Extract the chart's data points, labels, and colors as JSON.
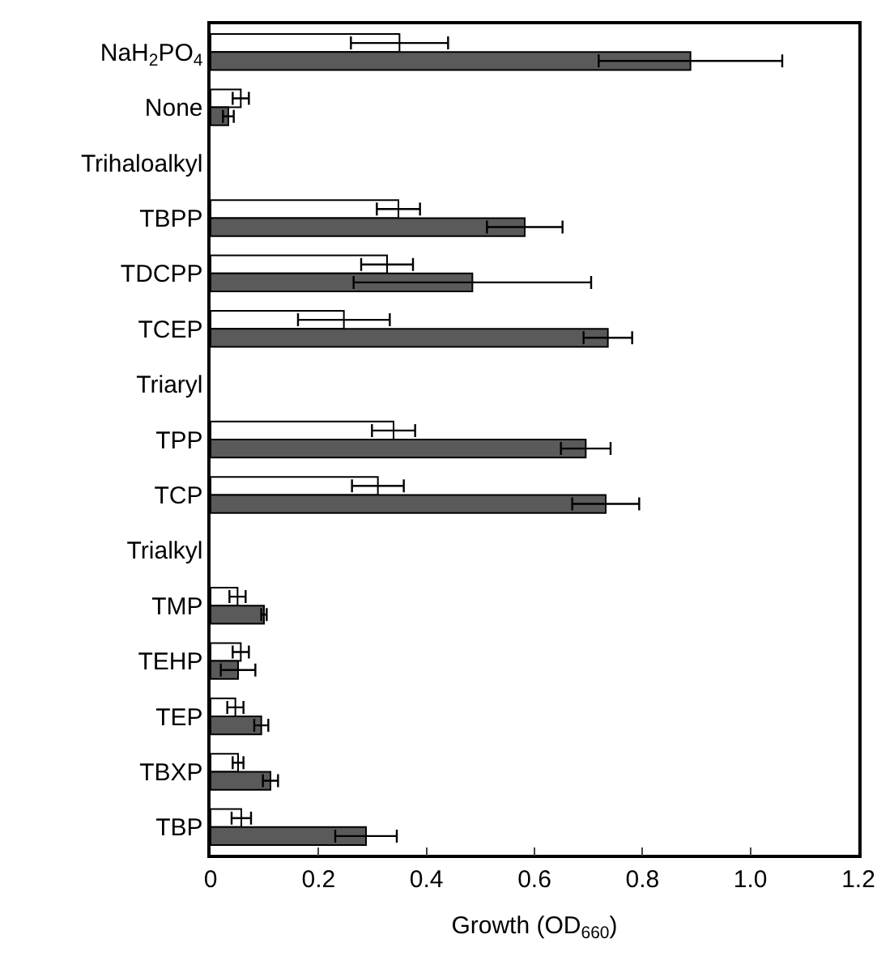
{
  "chart_data": {
    "type": "bar",
    "orientation": "horizontal",
    "xlabel": "Growth (OD$_{660}$)",
    "categories": [
      "NaH$_{2}$PO$_{4}$",
      "None",
      "Trihaloalkyl",
      "TBPP",
      "TDCPP",
      "TCEP",
      "Triaryl",
      "TPP",
      "TCP",
      "Trialkyl",
      "TMP",
      "TEHP",
      "TEP",
      "TBXP",
      "TBP"
    ],
    "series": [
      {
        "color": "#ffffff",
        "values": [
          0.35,
          0.056,
          null,
          0.348,
          0.327,
          0.247,
          null,
          0.339,
          0.31,
          null,
          0.05,
          0.056,
          0.046,
          0.051,
          0.057
        ],
        "errors": [
          0.09,
          0.015,
          null,
          0.04,
          0.048,
          0.085,
          null,
          0.04,
          0.048,
          null,
          0.015,
          0.015,
          0.015,
          0.01,
          0.018
        ]
      },
      {
        "color": "#5a5a5a",
        "values": [
          0.889,
          0.033,
          null,
          0.582,
          0.485,
          0.736,
          null,
          0.695,
          0.732,
          null,
          0.099,
          0.051,
          0.094,
          0.111,
          0.288
        ],
        "errors": [
          0.17,
          0.01,
          null,
          0.07,
          0.22,
          0.045,
          null,
          0.046,
          0.062,
          null,
          0.005,
          0.032,
          0.013,
          0.014,
          0.057
        ]
      }
    ],
    "xlim": [
      0,
      1.2
    ],
    "xticks": [
      0,
      0.2,
      0.4,
      0.6,
      0.8,
      {
        "value": 1.0,
        "label": "1.0"
      },
      1.2
    ]
  }
}
